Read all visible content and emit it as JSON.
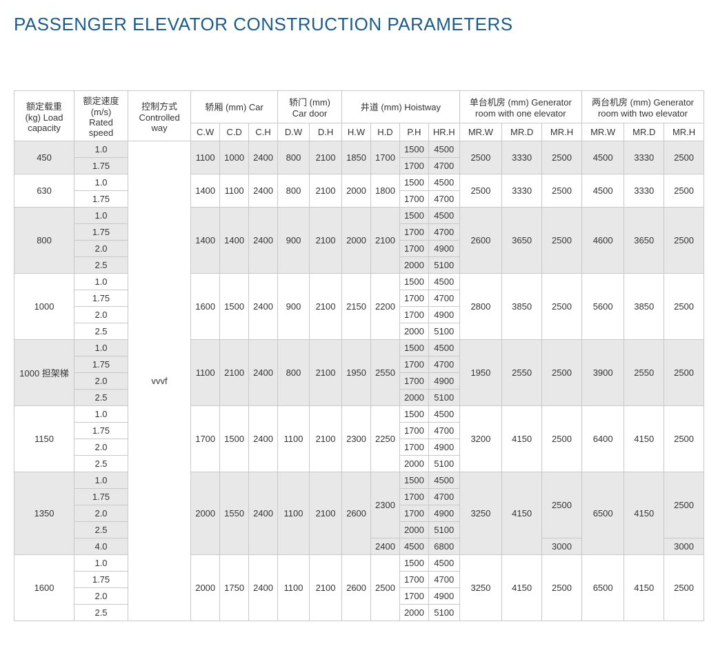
{
  "title": "PASSENGER ELEVATOR CONSTRUCTION PARAMETERS",
  "headers": {
    "load": "额定载重 (kg) Load capacity",
    "speed": "额定速度 (m/s) Rated speed",
    "control": "控制方式 Controlled way",
    "car": "轿厢 (mm) Car",
    "door": "轿门 (mm) Car door",
    "hoistway": "井道 (mm) Hoistway",
    "gen1": "单台机房 (mm) Generator room with one elevator",
    "gen2": "两台机房 (mm) Generator room with two elevator",
    "cw": "C.W",
    "cd": "C.D",
    "ch": "C.H",
    "dw": "D.W",
    "dh": "D.H",
    "hw": "H.W",
    "hd": "H.D",
    "ph": "P.H",
    "hrh": "HR.H",
    "mrw1": "MR.W",
    "mrd1": "MR.D",
    "mrh1": "MR.H",
    "mrw2": "MR.W",
    "mrd2": "MR.D",
    "mrh2": "MR.H"
  },
  "vvvf": "vvvf",
  "groups": [
    {
      "load": "450",
      "speeds": [
        "1.0",
        "1.75"
      ],
      "car": [
        "1100",
        "1000",
        "2400"
      ],
      "door": [
        "800",
        "2100"
      ],
      "hw": "1850",
      "hd": "1700",
      "ph_hrh": [
        [
          "1500",
          "4500"
        ],
        [
          "1700",
          "4700"
        ]
      ],
      "g1": [
        "2500",
        "3330",
        "2500"
      ],
      "g2": [
        "4500",
        "3330",
        "2500"
      ],
      "alt": true
    },
    {
      "load": "630",
      "speeds": [
        "1.0",
        "1.75"
      ],
      "car": [
        "1400",
        "1100",
        "2400"
      ],
      "door": [
        "800",
        "2100"
      ],
      "hw": "2000",
      "hd": "1800",
      "ph_hrh": [
        [
          "1500",
          "4500"
        ],
        [
          "1700",
          "4700"
        ]
      ],
      "g1": [
        "2500",
        "3330",
        "2500"
      ],
      "g2": [
        "4500",
        "3330",
        "2500"
      ],
      "alt": false
    },
    {
      "load": "800",
      "speeds": [
        "1.0",
        "1.75",
        "2.0",
        "2.5"
      ],
      "car": [
        "1400",
        "1400",
        "2400"
      ],
      "door": [
        "900",
        "2100"
      ],
      "hw": "2000",
      "hd": "2100",
      "ph_hrh": [
        [
          "1500",
          "4500"
        ],
        [
          "1700",
          "4700"
        ],
        [
          "1700",
          "4900"
        ],
        [
          "2000",
          "5100"
        ]
      ],
      "g1": [
        "2600",
        "3650",
        "2500"
      ],
      "g2": [
        "4600",
        "3650",
        "2500"
      ],
      "alt": true
    },
    {
      "load": "1000",
      "speeds": [
        "1.0",
        "1.75",
        "2.0",
        "2.5"
      ],
      "car": [
        "1600",
        "1500",
        "2400"
      ],
      "door": [
        "900",
        "2100"
      ],
      "hw": "2150",
      "hd": "2200",
      "ph_hrh": [
        [
          "1500",
          "4500"
        ],
        [
          "1700",
          "4700"
        ],
        [
          "1700",
          "4900"
        ],
        [
          "2000",
          "5100"
        ]
      ],
      "g1": [
        "2800",
        "3850",
        "2500"
      ],
      "g2": [
        "5600",
        "3850",
        "2500"
      ],
      "alt": false
    },
    {
      "load": "1000 担架梯",
      "speeds": [
        "1.0",
        "1.75",
        "2.0",
        "2.5"
      ],
      "car": [
        "1100",
        "2100",
        "2400"
      ],
      "door": [
        "800",
        "2100"
      ],
      "hw": "1950",
      "hd": "2550",
      "ph_hrh": [
        [
          "1500",
          "4500"
        ],
        [
          "1700",
          "4700"
        ],
        [
          "1700",
          "4900"
        ],
        [
          "2000",
          "5100"
        ]
      ],
      "g1": [
        "1950",
        "2550",
        "2500"
      ],
      "g2": [
        "3900",
        "2550",
        "2500"
      ],
      "alt": true
    },
    {
      "load": "1150",
      "speeds": [
        "1.0",
        "1.75",
        "2.0",
        "2.5"
      ],
      "car": [
        "1700",
        "1500",
        "2400"
      ],
      "door": [
        "1100",
        "2100"
      ],
      "hw": "2300",
      "hd": "2250",
      "ph_hrh": [
        [
          "1500",
          "4500"
        ],
        [
          "1700",
          "4700"
        ],
        [
          "1700",
          "4900"
        ],
        [
          "2000",
          "5100"
        ]
      ],
      "g1": [
        "3200",
        "4150",
        "2500"
      ],
      "g2": [
        "6400",
        "4150",
        "2500"
      ],
      "alt": false
    }
  ],
  "group1350": {
    "load": "1350",
    "speeds": [
      "1.0",
      "1.75",
      "2.0",
      "2.5",
      "4.0"
    ],
    "car": [
      "2000",
      "1550",
      "2400"
    ],
    "door": [
      "1100",
      "2100"
    ],
    "hw": "2600",
    "hd_top": "2300",
    "hd_bot": "2400",
    "ph_hrh": [
      [
        "1500",
        "4500"
      ],
      [
        "1700",
        "4700"
      ],
      [
        "1700",
        "4900"
      ],
      [
        "2000",
        "5100"
      ],
      [
        "4500",
        "6800"
      ]
    ],
    "g1_mrw": "3250",
    "g1_mrd": "4150",
    "g1_mrh_top": "2500",
    "g1_mrh_bot": "3000",
    "g2_mrw": "6500",
    "g2_mrd": "4150",
    "g2_mrh_top": "2500",
    "g2_mrh_bot": "3000",
    "alt": true
  },
  "group1600": {
    "load": "1600",
    "speeds": [
      "1.0",
      "1.75",
      "2.0",
      "2.5"
    ],
    "car": [
      "2000",
      "1750",
      "2400"
    ],
    "door": [
      "1100",
      "2100"
    ],
    "hw": "2600",
    "hd": "2500",
    "ph_hrh": [
      [
        "1500",
        "4500"
      ],
      [
        "1700",
        "4700"
      ],
      [
        "1700",
        "4900"
      ],
      [
        "2000",
        "5100"
      ]
    ],
    "g1": [
      "3250",
      "4150",
      "2500"
    ],
    "g2": [
      "6500",
      "4150",
      "2500"
    ],
    "alt": false
  }
}
